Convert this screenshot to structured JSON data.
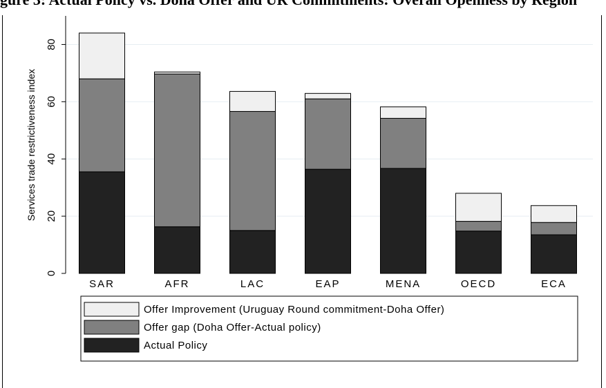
{
  "page_title": "gure 3: Actual Policy vs. Doha Offer and UR Commitments: Overall Openness by Region",
  "chart_data": {
    "type": "bar",
    "stacked": true,
    "categories": [
      "SAR",
      "AFR",
      "LAC",
      "EAP",
      "MENA",
      "OECD",
      "ECA"
    ],
    "series": [
      {
        "name": "Actual Policy",
        "values": [
          35.5,
          16.3,
          15.0,
          36.4,
          36.7,
          14.8,
          13.5
        ],
        "color": "#222222"
      },
      {
        "name": "Offer gap (Doha Offer-Actual policy)",
        "values": [
          32.5,
          53.4,
          41.6,
          24.6,
          17.5,
          3.4,
          4.3
        ],
        "color": "#808080"
      },
      {
        "name": "Offer Improvement (Uruguay Round commitment-Doha Offer)",
        "values": [
          16.0,
          0.7,
          7.0,
          1.9,
          4.0,
          9.8,
          5.9
        ],
        "color": "#f0f0f0"
      }
    ],
    "title": "",
    "xlabel": "",
    "ylabel": "Services trade restrictiveness index",
    "ylim": [
      0,
      90
    ],
    "yticks": [
      0,
      20,
      40,
      60,
      80
    ],
    "grid": true,
    "legend_position": "bottom"
  },
  "legend": {
    "items": [
      {
        "label": "Offer Improvement (Uruguay Round commitment-Doha Offer)",
        "color": "#f0f0f0"
      },
      {
        "label": "Offer gap (Doha Offer-Actual policy)",
        "color": "#808080"
      },
      {
        "label": "Actual Policy",
        "color": "#222222"
      }
    ]
  }
}
